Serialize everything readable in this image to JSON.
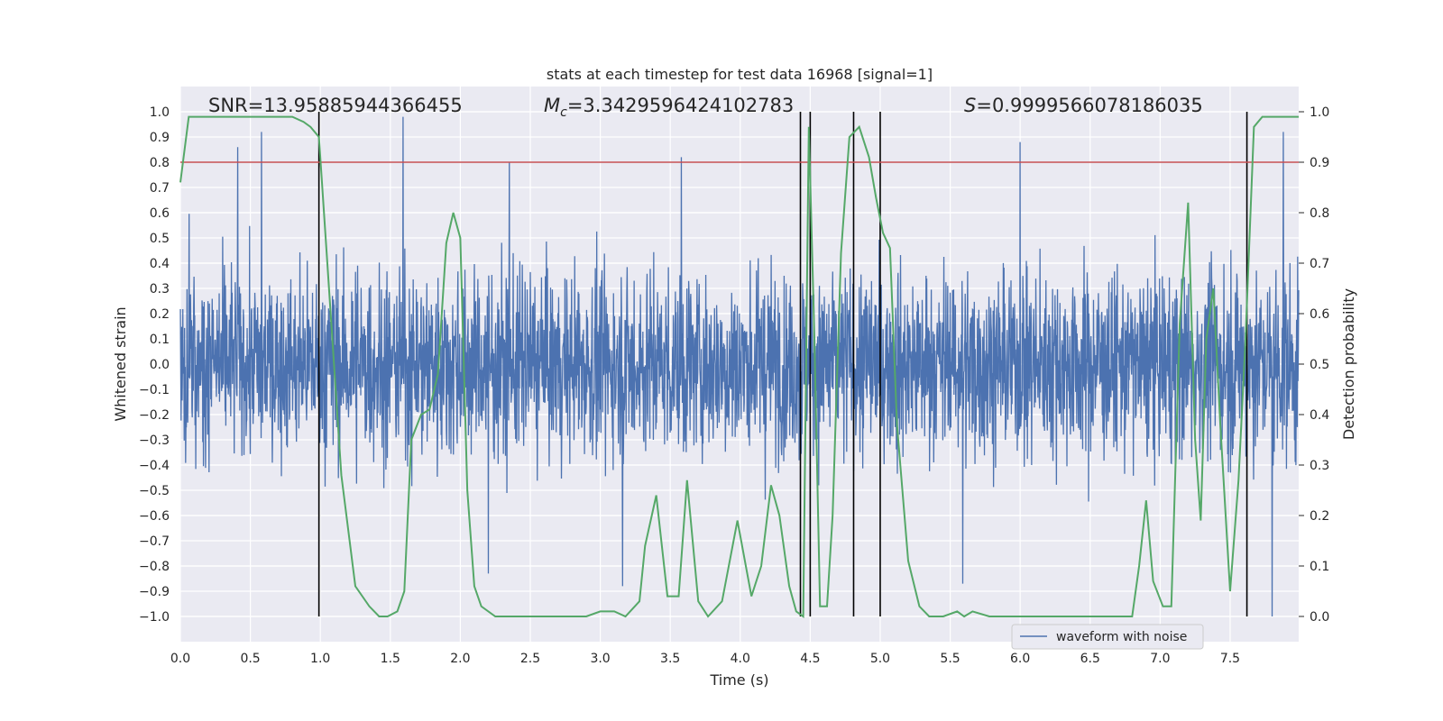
{
  "chart_data": {
    "type": "line",
    "title": "stats at each timestep for test data 16968 [signal=1]",
    "xlabel": "Time (s)",
    "ylabel": "Whitened strain",
    "y2label": "Detection probability",
    "xlim": [
      0.0,
      7.99
    ],
    "ylim": [
      -1.1,
      1.1
    ],
    "y2lim": [
      -0.05,
      1.05
    ],
    "grid": true,
    "x_ticks": [
      "0.0",
      "0.5",
      "1.0",
      "1.5",
      "2.0",
      "2.5",
      "3.0",
      "3.5",
      "4.0",
      "4.5",
      "5.0",
      "5.5",
      "6.0",
      "6.5",
      "7.0",
      "7.5"
    ],
    "y_ticks": [
      "1.0",
      "0.9",
      "0.8",
      "0.7",
      "0.6",
      "0.5",
      "0.4",
      "0.3",
      "0.2",
      "0.1",
      "0.0",
      "-0.1",
      "-0.2",
      "-0.3",
      "-0.4",
      "-0.5",
      "-0.6",
      "-0.7",
      "-0.8",
      "-0.9",
      "-1.0"
    ],
    "y2_ticks": [
      "1.0",
      "0.9",
      "0.8",
      "0.7",
      "0.6",
      "0.5",
      "0.4",
      "0.3",
      "0.2",
      "0.1",
      "0.0"
    ],
    "annotations": {
      "snr": "SNR=13.95885944366455",
      "mc_symbol": "M",
      "mc_sub": "c",
      "mc_value": "=3.3429596424102783",
      "s_symbol": "S",
      "s_value": "=0.9999566078186035"
    },
    "threshold": {
      "value": 0.9,
      "axis": "y2",
      "color": "#c44e52"
    },
    "vlines_x": [
      0.99,
      4.43,
      4.5,
      4.81,
      5.0,
      7.62
    ],
    "waveform_noise": {
      "name": "waveform with noise",
      "color": "#4c72b0",
      "typical_envelope": 0.4,
      "notable_spikes": [
        {
          "x": 0.41,
          "y": 0.86
        },
        {
          "x": 0.58,
          "y": 0.92
        },
        {
          "x": 1.59,
          "y": 0.98
        },
        {
          "x": 2.35,
          "y": 0.8
        },
        {
          "x": 3.58,
          "y": 0.82
        },
        {
          "x": 6.0,
          "y": 0.88
        },
        {
          "x": 7.88,
          "y": 0.92
        },
        {
          "x": 7.8,
          "y": -1.0
        },
        {
          "x": 2.2,
          "y": -0.83
        },
        {
          "x": 3.16,
          "y": -0.88
        },
        {
          "x": 5.59,
          "y": -0.87
        }
      ]
    },
    "detection_probability": {
      "name": "detection probability",
      "color": "#55a868",
      "x": [
        0.0,
        0.06,
        0.2,
        0.4,
        0.6,
        0.8,
        0.88,
        0.93,
        0.99,
        1.05,
        1.15,
        1.25,
        1.35,
        1.42,
        1.48,
        1.55,
        1.6,
        1.65,
        1.72,
        1.78,
        1.84,
        1.9,
        1.95,
        2.0,
        2.05,
        2.1,
        2.15,
        2.25,
        2.5,
        2.9,
        3.0,
        3.1,
        3.18,
        3.28,
        3.32,
        3.4,
        3.48,
        3.56,
        3.62,
        3.7,
        3.77,
        3.87,
        3.98,
        4.08,
        4.15,
        4.22,
        4.28,
        4.35,
        4.4,
        4.45,
        4.49,
        4.53,
        4.57,
        4.62,
        4.66,
        4.72,
        4.78,
        4.85,
        4.92,
        4.97,
        5.02,
        5.07,
        5.12,
        5.2,
        5.28,
        5.35,
        5.45,
        5.55,
        5.6,
        5.66,
        5.78,
        5.9,
        6.0,
        6.2,
        6.5,
        6.8,
        6.85,
        6.9,
        6.95,
        7.02,
        7.08,
        7.14,
        7.2,
        7.25,
        7.29,
        7.33,
        7.38,
        7.43,
        7.5,
        7.56,
        7.61,
        7.67,
        7.73,
        7.99
      ],
      "y": [
        0.86,
        0.99,
        0.99,
        0.99,
        0.99,
        0.99,
        0.98,
        0.97,
        0.95,
        0.7,
        0.28,
        0.06,
        0.02,
        0.0,
        0.0,
        0.01,
        0.05,
        0.35,
        0.4,
        0.41,
        0.48,
        0.74,
        0.8,
        0.75,
        0.25,
        0.06,
        0.02,
        0.0,
        0.0,
        0.0,
        0.01,
        0.01,
        0.0,
        0.03,
        0.14,
        0.24,
        0.04,
        0.04,
        0.27,
        0.03,
        0.0,
        0.03,
        0.19,
        0.04,
        0.1,
        0.26,
        0.2,
        0.06,
        0.01,
        0.0,
        0.97,
        0.55,
        0.02,
        0.02,
        0.2,
        0.72,
        0.95,
        0.97,
        0.91,
        0.83,
        0.76,
        0.73,
        0.38,
        0.11,
        0.02,
        0.0,
        0.0,
        0.01,
        0.0,
        0.01,
        0.0,
        0.0,
        0.0,
        0.0,
        0.0,
        0.0,
        0.1,
        0.23,
        0.07,
        0.02,
        0.02,
        0.58,
        0.82,
        0.35,
        0.19,
        0.55,
        0.65,
        0.38,
        0.05,
        0.27,
        0.55,
        0.97,
        0.99,
        0.99
      ]
    },
    "legend": {
      "placement": "lower-right",
      "entries": [
        "waveform with noise"
      ]
    }
  }
}
